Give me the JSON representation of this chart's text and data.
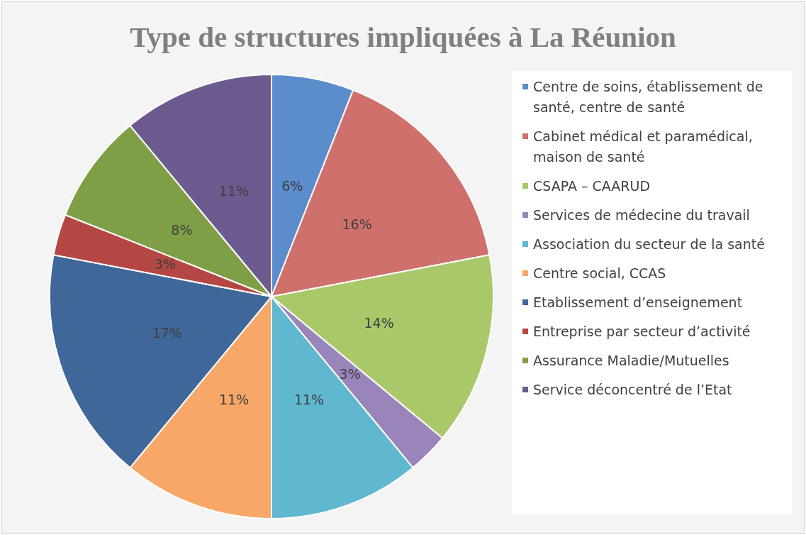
{
  "chart_data": {
    "type": "pie",
    "title": "Type de structures impliquées à La Réunion",
    "categories": [
      "Centre de soins, établissement de santé, centre de santé",
      "Cabinet médical et paramédical, maison de santé",
      "CSAPA – CAARUD",
      "Services de médecine du travail",
      "Association du secteur de la santé",
      "Centre social, CCAS",
      "Etablissement d’enseignement",
      "Entreprise par secteur d’activité",
      "Assurance Maladie/Mutuelles",
      "Service déconcentré de l’Etat"
    ],
    "values": [
      6,
      16,
      14,
      3,
      11,
      11,
      17,
      3,
      8,
      11
    ],
    "value_labels": [
      "6%",
      "16%",
      "14%",
      "3%",
      "11%",
      "11%",
      "17%",
      "3%",
      "8%",
      "11%"
    ],
    "colors": [
      "#5b8ccb",
      "#d0706d",
      "#a9c86a",
      "#9a85bb",
      "#5fb8cf",
      "#f7a868",
      "#3f6799",
      "#b44744",
      "#7f9f47",
      "#6d5a8e"
    ],
    "legend": "right"
  }
}
